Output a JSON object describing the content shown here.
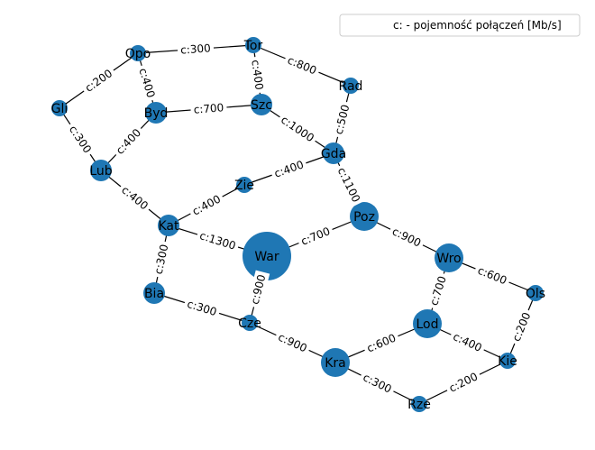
{
  "legend": {
    "text": "c: - pojemność połączeń [Mb/s]"
  },
  "colors": {
    "node": "#1f77b4",
    "edge": "#000000",
    "label_bg": "#ffffff"
  },
  "nodes": [
    {
      "id": "Opo",
      "label": "Opo",
      "size": "small"
    },
    {
      "id": "Tor",
      "label": "Tor",
      "size": "small"
    },
    {
      "id": "Rad",
      "label": "Rad",
      "size": "small"
    },
    {
      "id": "Gli",
      "label": "Gli",
      "size": "small"
    },
    {
      "id": "Byd",
      "label": "Byd",
      "size": "medium"
    },
    {
      "id": "Szc",
      "label": "Szc",
      "size": "medium"
    },
    {
      "id": "Gda",
      "label": "Gda",
      "size": "medium"
    },
    {
      "id": "Lub",
      "label": "Lub",
      "size": "medium"
    },
    {
      "id": "Zie",
      "label": "Zie",
      "size": "small"
    },
    {
      "id": "Kat",
      "label": "Kat",
      "size": "medium"
    },
    {
      "id": "Poz",
      "label": "Poz",
      "size": "large"
    },
    {
      "id": "War",
      "label": "War",
      "size": "xlarge"
    },
    {
      "id": "Wro",
      "label": "Wro",
      "size": "large"
    },
    {
      "id": "Bia",
      "label": "Bia",
      "size": "medium"
    },
    {
      "id": "Ols",
      "label": "Ols",
      "size": "small"
    },
    {
      "id": "Cze",
      "label": "Cze",
      "size": "small"
    },
    {
      "id": "Lod",
      "label": "Lod",
      "size": "large"
    },
    {
      "id": "Kie",
      "label": "Kie",
      "size": "small"
    },
    {
      "id": "Kra",
      "label": "Kra",
      "size": "large"
    },
    {
      "id": "Rze",
      "label": "Rze",
      "size": "small"
    }
  ],
  "edges": [
    {
      "from": "Opo",
      "to": "Tor",
      "label": "c:300"
    },
    {
      "from": "Tor",
      "to": "Rad",
      "label": "c:800"
    },
    {
      "from": "Opo",
      "to": "Gli",
      "label": "c:200"
    },
    {
      "from": "Opo",
      "to": "Byd",
      "label": "c:400"
    },
    {
      "from": "Tor",
      "to": "Szc",
      "label": "c:400"
    },
    {
      "from": "Byd",
      "to": "Szc",
      "label": "c:700"
    },
    {
      "from": "Rad",
      "to": "Gda",
      "label": "c:500"
    },
    {
      "from": "Szc",
      "to": "Gda",
      "label": "c:1000"
    },
    {
      "from": "Gli",
      "to": "Lub",
      "label": "c:300"
    },
    {
      "from": "Byd",
      "to": "Lub",
      "label": "c:400"
    },
    {
      "from": "Gda",
      "to": "Zie",
      "label": "c:400"
    },
    {
      "from": "Gda",
      "to": "Poz",
      "label": "c:1100"
    },
    {
      "from": "Lub",
      "to": "Kat",
      "label": "c:400"
    },
    {
      "from": "Zie",
      "to": "Kat",
      "label": "c:400"
    },
    {
      "from": "Kat",
      "to": "War",
      "label": "c:1300"
    },
    {
      "from": "Kat",
      "to": "Bia",
      "label": "c:300"
    },
    {
      "from": "Poz",
      "to": "War",
      "label": "c:700"
    },
    {
      "from": "Poz",
      "to": "Wro",
      "label": "c:900"
    },
    {
      "from": "War",
      "to": "Cze",
      "label": "c:900"
    },
    {
      "from": "Bia",
      "to": "Cze",
      "label": "c:300"
    },
    {
      "from": "Wro",
      "to": "Ols",
      "label": "c:600"
    },
    {
      "from": "Wro",
      "to": "Lod",
      "label": "c:700"
    },
    {
      "from": "Ols",
      "to": "Kie",
      "label": "c:200"
    },
    {
      "from": "Lod",
      "to": "Kie",
      "label": "c:400"
    },
    {
      "from": "Cze",
      "to": "Kra",
      "label": "c:900"
    },
    {
      "from": "Lod",
      "to": "Kra",
      "label": "c:600"
    },
    {
      "from": "Kra",
      "to": "Rze",
      "label": "c:300"
    },
    {
      "from": "Kie",
      "to": "Rze",
      "label": "c:200"
    }
  ]
}
